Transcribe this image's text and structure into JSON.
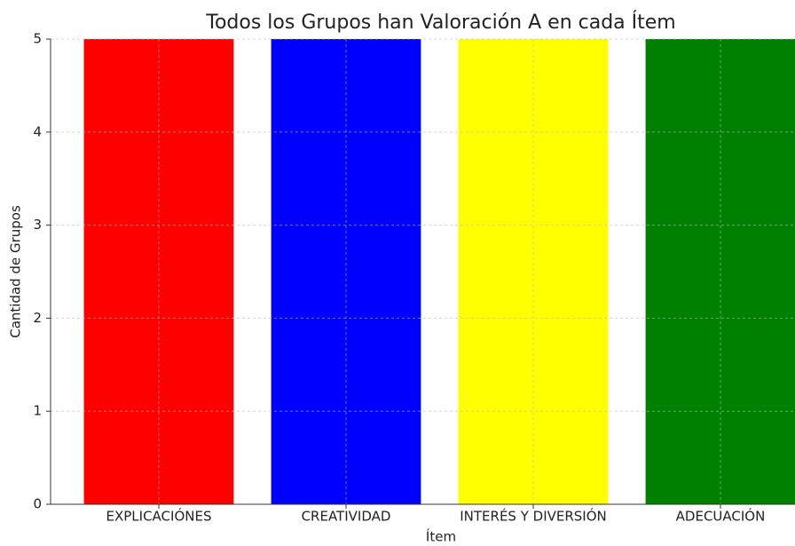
{
  "chart_data": {
    "type": "bar",
    "title": "Todos los Grupos han Valoración A en cada Ítem",
    "x_label": "Ítem",
    "y_label": "Cantidad de Grupos",
    "categories": [
      "EXPLICACIÓNES",
      "CREATIVIDAD",
      "INTERÉS Y DIVERSIÓN",
      "ADECUACIÓN"
    ],
    "values": [
      5,
      5,
      5,
      5
    ],
    "colors": [
      "#ff0000",
      "#0000ff",
      "#ffff00",
      "#008000"
    ],
    "ylim": [
      0,
      5
    ],
    "yticks": [
      0,
      1,
      2,
      3,
      4,
      5
    ],
    "grid": true
  }
}
